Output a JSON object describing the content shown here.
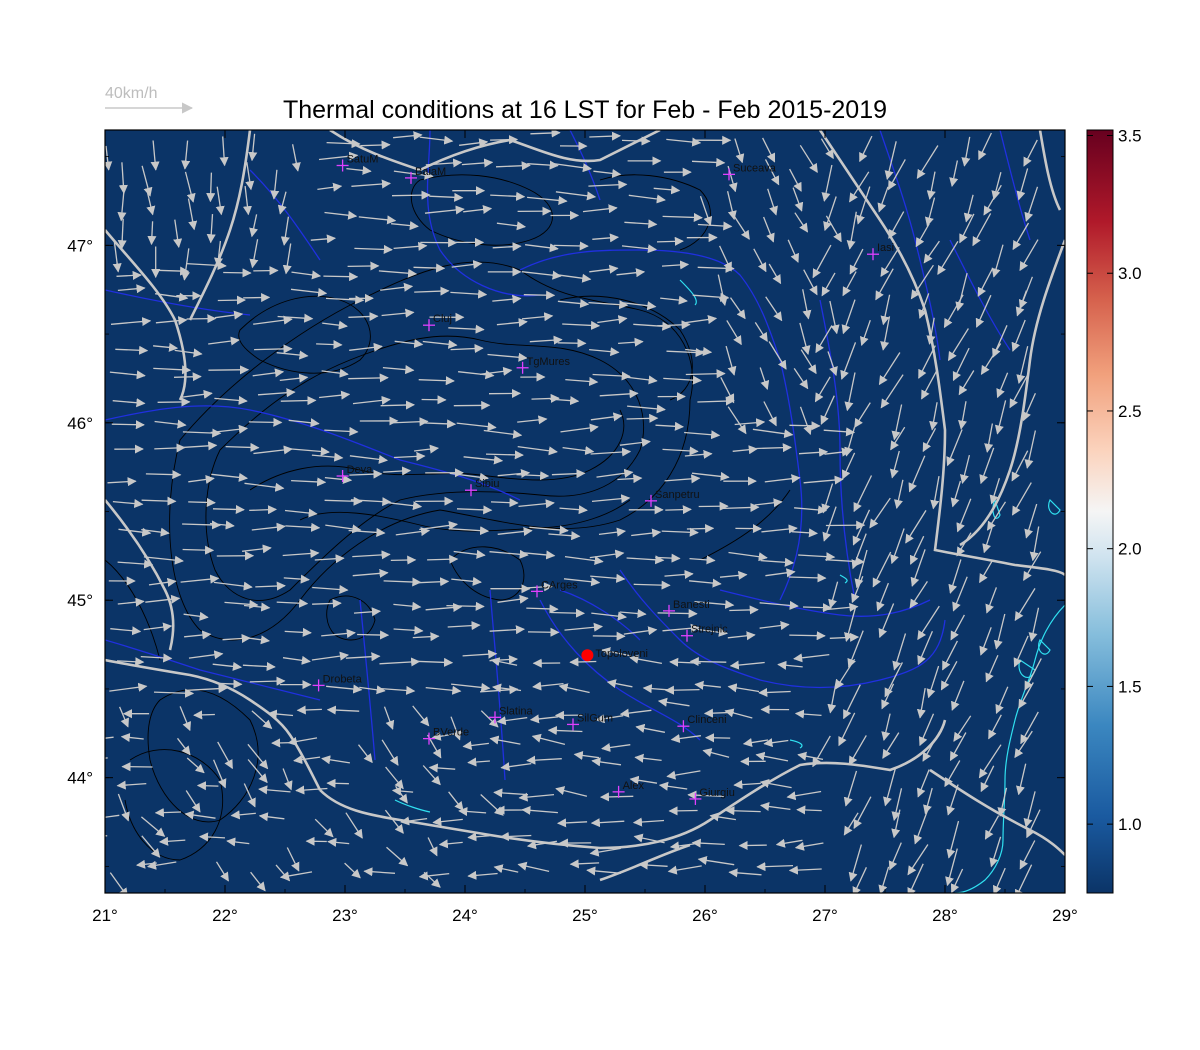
{
  "title": "Thermal conditions at 16 LST for Feb - Feb  2015-2019",
  "wind_scale": {
    "label": "40km/h",
    "color": "#c8c8c8"
  },
  "map": {
    "lon_range": [
      21,
      29
    ],
    "lat_range": [
      43.35,
      47.65
    ],
    "background_color": "#0b3467",
    "lon_ticks": [
      21,
      22,
      23,
      24,
      25,
      26,
      27,
      28,
      29
    ],
    "lon_tick_labels": [
      "21°",
      "22°",
      "23°",
      "24°",
      "25°",
      "26°",
      "27°",
      "28°",
      "29°"
    ],
    "lat_ticks": [
      44,
      45,
      46,
      47
    ],
    "lat_tick_labels": [
      "44°",
      "45°",
      "46°",
      "47°"
    ],
    "cities": [
      {
        "name": "SatuM",
        "lon": 22.98,
        "lat": 47.45
      },
      {
        "name": "BaiaM",
        "lon": 23.55,
        "lat": 47.38
      },
      {
        "name": "Suceava",
        "lon": 26.2,
        "lat": 47.4
      },
      {
        "name": "Iasi",
        "lon": 27.4,
        "lat": 46.95
      },
      {
        "name": "Cluj",
        "lon": 23.7,
        "lat": 46.55
      },
      {
        "name": "TgMures",
        "lon": 24.48,
        "lat": 46.31
      },
      {
        "name": "Deva",
        "lon": 22.98,
        "lat": 45.7
      },
      {
        "name": "Sibiu",
        "lon": 24.05,
        "lat": 45.62
      },
      {
        "name": "Sanpetru",
        "lon": 25.55,
        "lat": 45.56
      },
      {
        "name": "CArges",
        "lon": 24.6,
        "lat": 45.05
      },
      {
        "name": "Banesti",
        "lon": 25.7,
        "lat": 44.94
      },
      {
        "name": "Strejnic",
        "lon": 25.85,
        "lat": 44.8
      },
      {
        "name": "Drobeta",
        "lon": 22.78,
        "lat": 44.52
      },
      {
        "name": "Slatina",
        "lon": 24.25,
        "lat": 44.34
      },
      {
        "name": "SilGum",
        "lon": 24.9,
        "lat": 44.3
      },
      {
        "name": "Clinceni",
        "lon": 25.82,
        "lat": 44.29
      },
      {
        "name": "BVerde",
        "lon": 23.7,
        "lat": 44.22
      },
      {
        "name": "Alex",
        "lon": 25.28,
        "lat": 43.92
      },
      {
        "name": "Giurgiu",
        "lon": 25.92,
        "lat": 43.88
      }
    ],
    "marker": {
      "name": "Topoloveni",
      "lon": 25.02,
      "lat": 44.69,
      "color": "#ff0000"
    }
  },
  "colorbar": {
    "range": [
      0.75,
      3.52
    ],
    "tick_values": [
      1.0,
      1.5,
      2.0,
      2.5,
      3.0,
      3.5
    ],
    "tick_labels": [
      "1.0",
      "1.5",
      "2.0",
      "2.5",
      "3.0",
      "3.5"
    ],
    "colors": [
      "#0b3467",
      "#2166ac",
      "#4393c3",
      "#92c5de",
      "#d1e5f0",
      "#f7f7f7",
      "#fddbc7",
      "#f4a582",
      "#d6604d",
      "#b2182b",
      "#67001f"
    ]
  },
  "colors": {
    "borders": "#c8c8c8",
    "rivers": "#2030e0",
    "lakes": "#30e0f0",
    "contours": "#000000",
    "city_marker": "#e040ff",
    "wind_arrows": "#c8c8c8"
  }
}
